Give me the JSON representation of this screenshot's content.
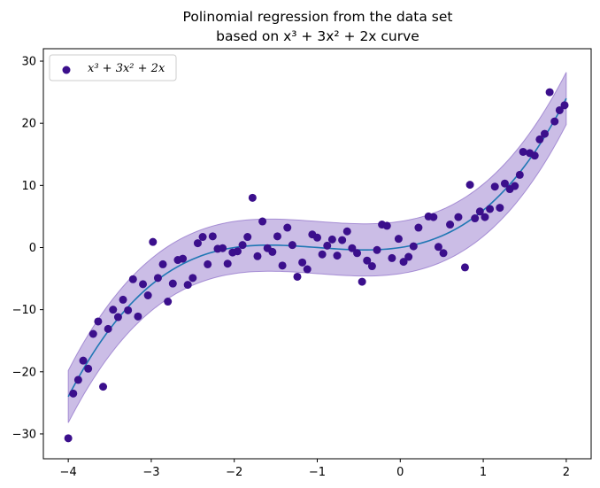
{
  "chart_data": {
    "type": "scatter",
    "title": "Polinomial regression from the data set",
    "title_line2": "based on x³ + 3x² + 2x curve",
    "xlabel": "",
    "ylabel": "",
    "xlim": [
      -4.3,
      2.3
    ],
    "ylim": [
      -34,
      32
    ],
    "xticks": [
      -4,
      -3,
      -2,
      -1,
      0,
      1,
      2
    ],
    "yticks": [
      -30,
      -20,
      -10,
      0,
      10,
      20,
      30
    ],
    "xtick_labels": [
      "−4",
      "−3",
      "−2",
      "−1",
      "0",
      "1",
      "2"
    ],
    "ytick_labels": [
      "−30",
      "−20",
      "−10",
      "0",
      "10",
      "20",
      "30"
    ],
    "grid": false,
    "legend": {
      "position": "top-left",
      "label": "x³ + 3x² + 2x"
    },
    "colors": {
      "points": "#3b0f8c",
      "fit_line": "#1f77b4",
      "band": "#8c6cc8"
    },
    "fit": {
      "coefficients_descending": [
        1,
        3,
        2,
        0
      ],
      "x_range": [
        -4,
        2
      ],
      "band_halfwidth": 4.2
    },
    "series": [
      {
        "name": "x³ + 3x² + 2x",
        "points": [
          [
            -4.0,
            -30.7
          ],
          [
            -3.94,
            -23.5
          ],
          [
            -3.88,
            -21.3
          ],
          [
            -3.82,
            -18.2
          ],
          [
            -3.76,
            -19.5
          ],
          [
            -3.7,
            -13.9
          ],
          [
            -3.64,
            -11.9
          ],
          [
            -3.58,
            -22.4
          ],
          [
            -3.52,
            -13.1
          ],
          [
            -3.46,
            -10.0
          ],
          [
            -3.4,
            -11.2
          ],
          [
            -3.34,
            -8.4
          ],
          [
            -3.28,
            -10.1
          ],
          [
            -3.22,
            -5.1
          ],
          [
            -3.16,
            -11.1
          ],
          [
            -3.1,
            -5.9
          ],
          [
            -3.04,
            -7.7
          ],
          [
            -2.98,
            0.9
          ],
          [
            -2.92,
            -4.9
          ],
          [
            -2.86,
            -2.7
          ],
          [
            -2.8,
            -8.7
          ],
          [
            -2.74,
            -5.8
          ],
          [
            -2.68,
            -2.0
          ],
          [
            -2.62,
            -1.8
          ],
          [
            -2.56,
            -6.0
          ],
          [
            -2.5,
            -4.9
          ],
          [
            -2.44,
            0.7
          ],
          [
            -2.38,
            1.7
          ],
          [
            -2.32,
            -2.7
          ],
          [
            -2.26,
            1.8
          ],
          [
            -2.2,
            -0.2
          ],
          [
            -2.14,
            -0.1
          ],
          [
            -2.08,
            -2.6
          ],
          [
            -2.02,
            -0.8
          ],
          [
            -1.96,
            -0.6
          ],
          [
            -1.9,
            0.4
          ],
          [
            -1.84,
            1.7
          ],
          [
            -1.78,
            8.0
          ],
          [
            -1.72,
            -1.4
          ],
          [
            -1.66,
            4.2
          ],
          [
            -1.6,
            -0.1
          ],
          [
            -1.54,
            -0.7
          ],
          [
            -1.48,
            1.8
          ],
          [
            -1.42,
            -2.9
          ],
          [
            -1.36,
            3.2
          ],
          [
            -1.3,
            0.4
          ],
          [
            -1.24,
            -4.7
          ],
          [
            -1.18,
            -2.4
          ],
          [
            -1.12,
            -3.5
          ],
          [
            -1.06,
            2.1
          ],
          [
            -1.0,
            1.6
          ],
          [
            -0.94,
            -1.1
          ],
          [
            -0.88,
            0.3
          ],
          [
            -0.82,
            1.3
          ],
          [
            -0.76,
            -1.3
          ],
          [
            -0.7,
            1.2
          ],
          [
            -0.64,
            2.6
          ],
          [
            -0.58,
            -0.1
          ],
          [
            -0.52,
            -0.9
          ],
          [
            -0.46,
            -5.5
          ],
          [
            -0.4,
            -2.1
          ],
          [
            -0.34,
            -3.0
          ],
          [
            -0.28,
            -0.4
          ],
          [
            -0.22,
            3.7
          ],
          [
            -0.16,
            3.5
          ],
          [
            -0.1,
            -1.7
          ],
          [
            -0.02,
            1.4
          ],
          [
            0.04,
            -2.3
          ],
          [
            0.1,
            -1.5
          ],
          [
            0.16,
            0.2
          ],
          [
            0.22,
            3.2
          ],
          [
            0.34,
            5.0
          ],
          [
            0.4,
            4.9
          ],
          [
            0.46,
            0.1
          ],
          [
            0.52,
            -0.9
          ],
          [
            0.6,
            3.7
          ],
          [
            0.7,
            4.9
          ],
          [
            0.78,
            -3.2
          ],
          [
            0.84,
            10.1
          ],
          [
            0.9,
            4.7
          ],
          [
            0.96,
            5.8
          ],
          [
            1.02,
            4.9
          ],
          [
            1.08,
            6.2
          ],
          [
            1.14,
            9.8
          ],
          [
            1.2,
            6.4
          ],
          [
            1.26,
            10.3
          ],
          [
            1.32,
            9.4
          ],
          [
            1.38,
            9.9
          ],
          [
            1.44,
            11.7
          ],
          [
            1.48,
            15.4
          ],
          [
            1.56,
            15.2
          ],
          [
            1.62,
            14.8
          ],
          [
            1.68,
            17.4
          ],
          [
            1.74,
            18.3
          ],
          [
            1.8,
            25.0
          ],
          [
            1.86,
            20.3
          ],
          [
            1.92,
            22.1
          ],
          [
            1.98,
            22.9
          ]
        ]
      }
    ]
  }
}
